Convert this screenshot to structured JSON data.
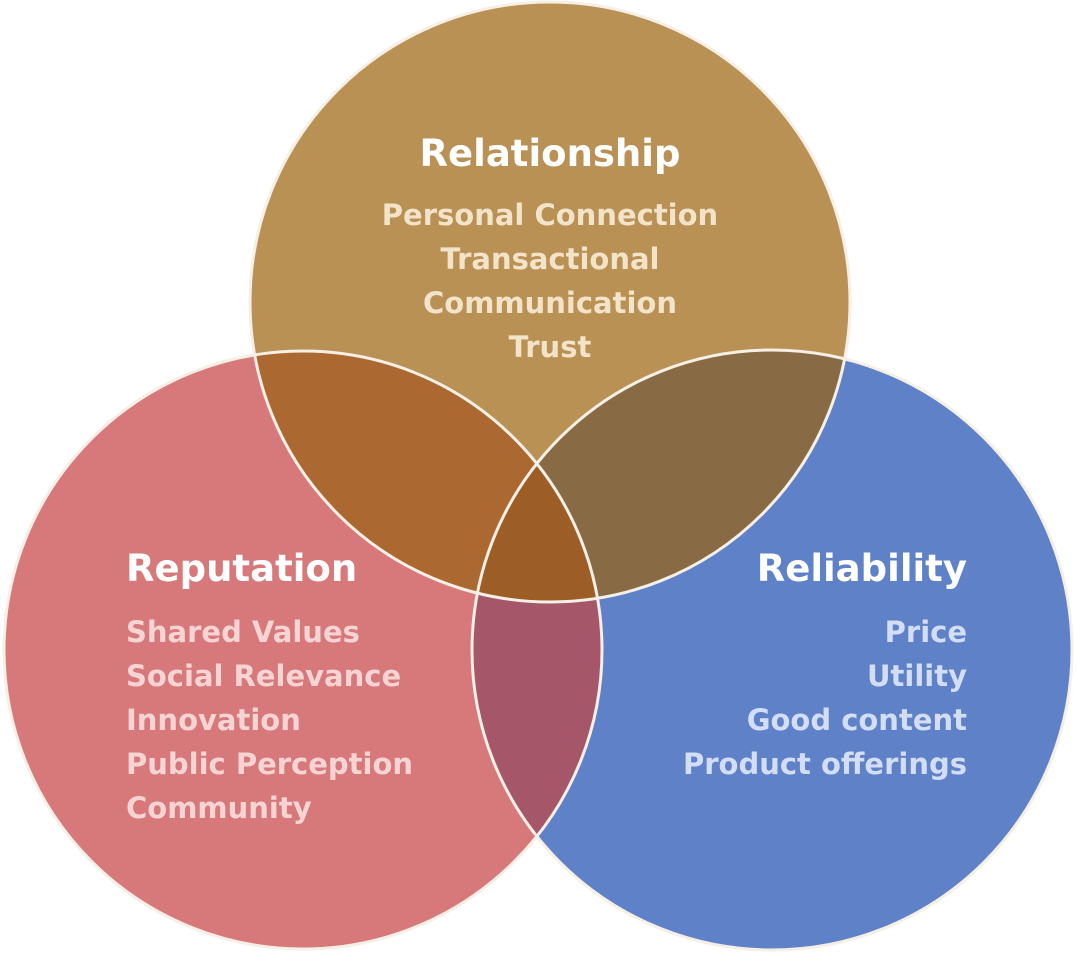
{
  "venn": {
    "colors": {
      "relationship": "#b99155",
      "reputation": "#d7797a",
      "reliability": "#5e81c8",
      "relationship_reputation": "#ab6830",
      "relationship_reliability": "#886b45",
      "reputation_reliability": "#a55669",
      "center": "#9d5d27",
      "outline": "#f5efe6"
    },
    "relationship": {
      "title": "Relationship",
      "items": [
        "Personal Connection",
        "Transactional",
        "Communication",
        "Trust"
      ],
      "item_color": "#f2e3c9"
    },
    "reputation": {
      "title": "Reputation",
      "items": [
        "Shared Values",
        "Social Relevance",
        "Innovation",
        "Public Perception",
        "Community"
      ],
      "item_color": "#f7d4d4"
    },
    "reliability": {
      "title": "Reliability",
      "items": [
        "Price",
        "Utility",
        "Good content",
        "Product offerings"
      ],
      "item_color": "#d3def5"
    }
  }
}
